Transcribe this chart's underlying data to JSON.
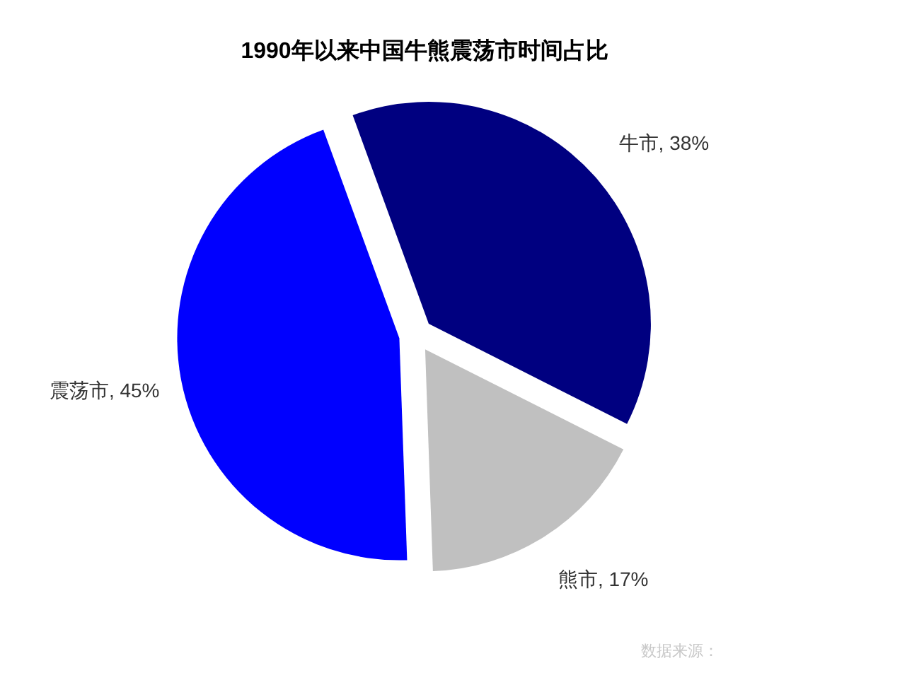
{
  "chart_data": {
    "type": "pie",
    "title": "1990年以来中国牛熊震荡市时间占比",
    "categories": [
      "牛市",
      "熊市",
      "震荡市"
    ],
    "values": [
      38,
      17,
      45
    ],
    "value_labels": [
      "38%",
      "17%",
      "45%"
    ],
    "colors": [
      "#000080",
      "#c0c0c0",
      "#0000ff"
    ],
    "annotations": [
      "数据来源："
    ]
  }
}
